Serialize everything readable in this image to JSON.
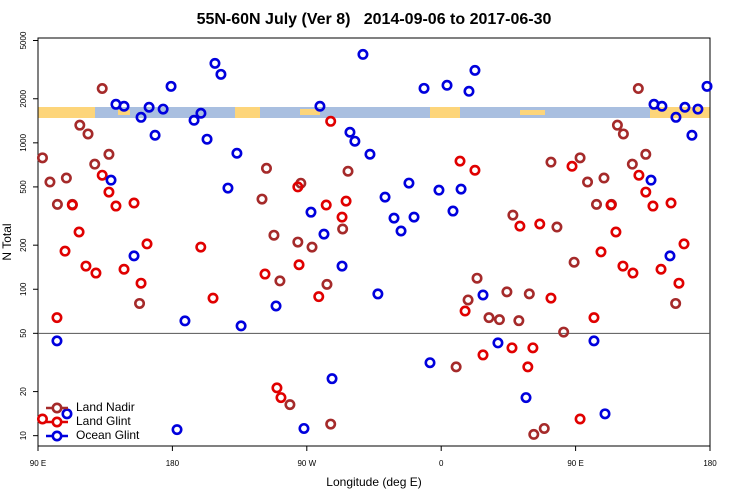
{
  "chart_data": {
    "type": "scatter",
    "title": "55N-60N July (Ver 8)   2014-09-06 to 2017-06-30",
    "x_label": "Longitude (deg E)",
    "y_label": "N Total",
    "xlim": [
      90,
      540
    ],
    "ylim": [
      8.5,
      5200
    ],
    "log_y": true,
    "xticks": [
      {
        "value": 90,
        "label": "90 E"
      },
      180,
      {
        "value": 270,
        "label": "90 W"
      },
      {
        "value": 360,
        "label": "0"
      },
      {
        "value": 450,
        "label": "90 E"
      },
      {
        "value": 540,
        "label": "180"
      }
    ],
    "yticks": [
      10,
      20,
      50,
      100,
      200,
      500,
      1000,
      2000,
      5000
    ],
    "hline": 50,
    "legend": "bottom-left",
    "series": [
      {
        "name": "Land Nadir",
        "color": "#a52a2a",
        "x": [
          93,
          98,
          103,
          109,
          113,
          118,
          123.5,
          128,
          133,
          137.5,
          158,
          240,
          243,
          248,
          252,
          264,
          266,
          273.5,
          283.5,
          294,
          297.6,
          286,
          258.7,
          370,
          378,
          384,
          392,
          399,
          404,
          408,
          412,
          419,
          422,
          429,
          433.5,
          437.5,
          442,
          449,
          453,
          458,
          464,
          469,
          474,
          478,
          482,
          488,
          492,
          497,
          517
        ],
        "values": [
          790,
          540,
          380,
          575,
          380,
          1320,
          1150,
          715,
          2350,
          835,
          80,
          413,
          670,
          234,
          114,
          210,
          530,
          194,
          108,
          258,
          640,
          12,
          16.3,
          29.5,
          84.5,
          119,
          64,
          62,
          96,
          321,
          61,
          93,
          10.2,
          11.2,
          738,
          266,
          51,
          153,
          790,
          540,
          380,
          575,
          380,
          1320,
          1150,
          715,
          2350,
          835,
          80
        ]
      },
      {
        "name": "Land Glint",
        "color": "#e00000",
        "x": [
          93,
          102.7,
          108.1,
          113,
          117.5,
          122.1,
          128.8,
          133,
          137.5,
          142.2,
          147.6,
          154.3,
          159,
          163,
          199,
          207.2,
          242,
          264.8,
          264,
          278,
          283,
          293.6,
          296.3,
          286,
          250,
          252.7,
          372.6,
          382.6,
          376,
          388,
          412.7,
          426,
          407.4,
          418,
          421.4,
          433.5,
          447.6,
          453,
          462.3,
          467,
          473.7,
          477,
          481.7,
          488.4,
          492.4,
          497,
          501.8,
          507.2,
          513.9,
          519.2,
          522.6
        ],
        "values": [
          13,
          64,
          182,
          376,
          246,
          144,
          129,
          601,
          461,
          370,
          137,
          388,
          110,
          204,
          194,
          87,
          127,
          147,
          500,
          89,
          376,
          311,
          400,
          1403,
          21.2,
          18.2,
          750,
          650,
          71,
          35.6,
          270,
          279,
          39.8,
          29.5,
          39.8,
          87,
          692,
          13,
          64,
          180,
          376,
          246,
          144,
          129,
          601,
          461,
          370,
          137,
          388,
          110,
          204
        ]
      },
      {
        "name": "Ocean Glint",
        "color": "#0000dd",
        "x": [
          102.7,
          109.4,
          142.2,
          147.6,
          138.9,
          154.3,
          159,
          164.4,
          168.4,
          173.8,
          179.1,
          183.1,
          188.4,
          194.5,
          199.1,
          203.2,
          208.5,
          212.5,
          217.2,
          223.2,
          226,
          249.4,
          268.1,
          272.8,
          278.8,
          281.5,
          293.6,
          298.9,
          302.2,
          286.9,
          307.6,
          312.3,
          317.6,
          322.4,
          328.4,
          333.1,
          338.4,
          341.8,
          348.5,
          352.5,
          358.5,
          363.9,
          367.9,
          373.3,
          378.6,
          382.6,
          388,
          398,
          416.8,
          462.3,
          469.7,
          502.5,
          507.8,
          500.5,
          513.2,
          517.2,
          523.2,
          527.9,
          531.9,
          538
        ],
        "values": [
          44.4,
          14.1,
          1833,
          1778,
          556,
          169,
          1494,
          1750,
          1127,
          1700,
          2432,
          11,
          60.8,
          1426,
          1592,
          1059,
          3491,
          2937,
          491,
          849,
          56.2,
          76.9,
          11.2,
          336,
          1778,
          238,
          144,
          1181,
          1026,
          24.5,
          4018,
          836,
          92.9,
          426,
          306,
          250,
          531,
          311,
          2357,
          31.5,
          475,
          2472,
          342,
          483,
          2249,
          3126,
          91.4,
          43,
          18.2,
          44.4,
          14.1,
          1833,
          1778,
          556,
          169,
          1494,
          1750,
          1127,
          1700,
          2432
        ]
      }
    ]
  }
}
